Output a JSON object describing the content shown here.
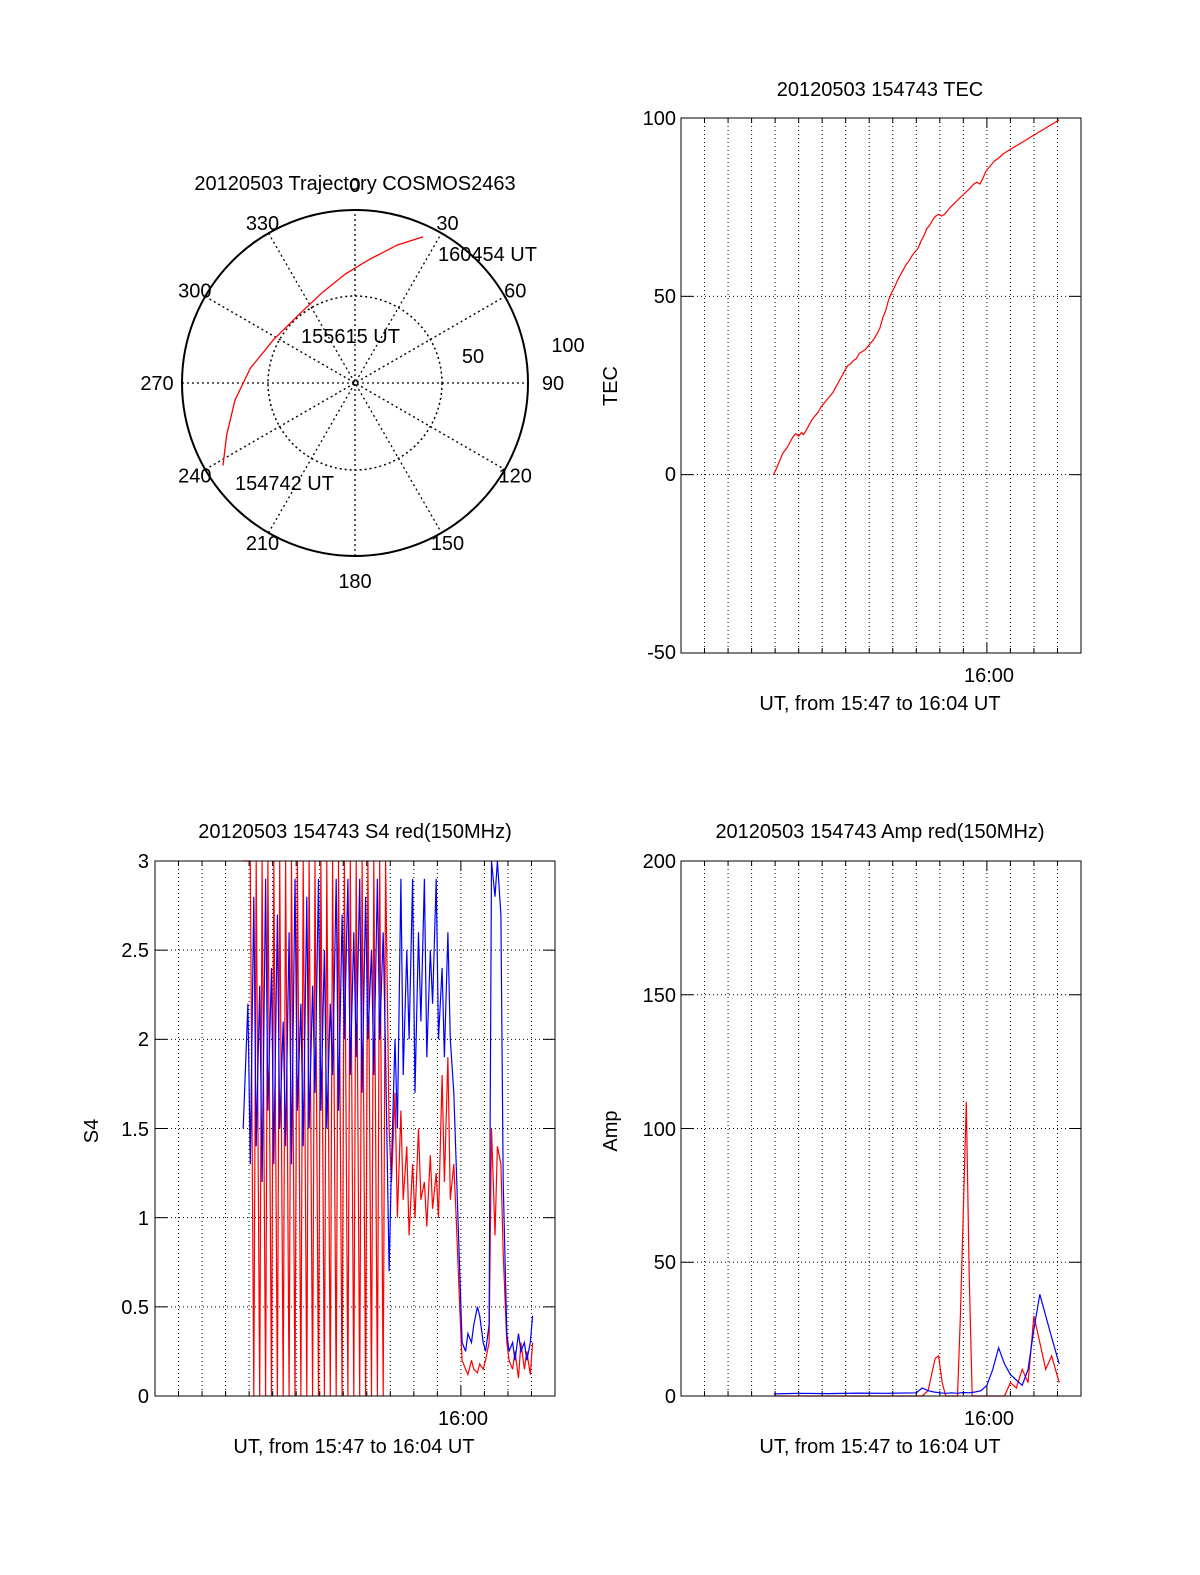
{
  "chart_data": [
    {
      "type": "polar",
      "title": "20120503 Trajectory COSMOS2463",
      "azimuth_labels": [
        "0",
        "30",
        "60",
        "90",
        "120",
        "150",
        "180",
        "210",
        "240",
        "270",
        "300",
        "330"
      ],
      "radial_labels": [
        "50",
        "100"
      ],
      "track_color": "#ff0000",
      "track": [
        {
          "az": 238,
          "zenith": 81
        },
        {
          "az": 248,
          "zenith": 72
        },
        {
          "az": 262,
          "zenith": 63
        },
        {
          "az": 278,
          "zenith": 55
        },
        {
          "az": 298,
          "zenith": 48
        },
        {
          "az": 320,
          "zenith": 46
        },
        {
          "az": 340,
          "zenith": 50
        },
        {
          "az": 355,
          "zenith": 57
        },
        {
          "az": 7,
          "zenith": 65
        },
        {
          "az": 17,
          "zenith": 75
        },
        {
          "az": 25,
          "zenith": 84
        }
      ],
      "annotations": [
        {
          "text": "160454 UT",
          "at": "end"
        },
        {
          "text": "155615 UT",
          "at": "middle"
        },
        {
          "text": "154742 UT",
          "at": "start"
        }
      ]
    },
    {
      "type": "line",
      "title": "20120503 154743 TEC",
      "ylabel": "TEC",
      "xlabel": "UT, from 15:47 to 16:04 UT",
      "xtick_label": "16:00",
      "ylim": [
        -50,
        100
      ],
      "yticks": [
        "-50",
        "0",
        "50",
        "100"
      ],
      "series": [
        {
          "color": "#ff0000",
          "x": [
            15.8,
            15.9,
            16.3,
            16.8,
            17.3,
            18.0,
            18.5,
            19.0,
            19.5,
            20.0,
            20.5,
            20.8,
            21.3,
            21.8,
            22.3,
            22.8,
            23.3,
            23.8,
            24.2,
            24.8,
            25.3,
            25.8,
            26.3,
            26.8,
            27.3,
            27.8,
            28.3,
            28.8,
            29.3,
            29.8,
            30.3,
            30.8,
            31.3,
            31.8,
            32.3,
            32.8,
            33.3,
            33.8,
            34.3,
            34.8,
            35.3,
            35.8,
            36.3,
            36.8,
            37.3,
            37.8,
            38.3,
            38.8,
            39.3,
            39.8,
            40.3,
            40.8,
            41.3,
            41.8,
            42.3,
            42.8,
            43.3,
            43.8,
            44.3,
            44.8,
            45.3,
            45.8,
            46.3,
            46.8,
            47.3,
            47.8,
            48.3,
            48.8,
            49.3,
            49.8,
            50.3,
            50.8,
            51.3,
            51.8,
            52.3,
            52.8,
            53.3,
            53.8,
            54.3,
            54.8,
            55.3,
            55.8,
            56.3,
            56.8,
            57.3,
            57.8,
            58.3,
            58.8,
            59.3,
            59.8,
            60.3,
            60.8,
            61.3,
            61.8,
            62.3,
            62.8,
            63.3,
            63.8,
            64.3
          ],
          "y": [
            0,
            0.6,
            2,
            4,
            6,
            7.5,
            9,
            10.5,
            11.5,
            10.8,
            11.8,
            11.2,
            12.5,
            14,
            15.5,
            16.5,
            17.5,
            19,
            19.8,
            21,
            22,
            23,
            24.5,
            26,
            27.5,
            29,
            30.5,
            31,
            32,
            32.5,
            34,
            34.5,
            35,
            36,
            37,
            38,
            39.5,
            41,
            44,
            46,
            49,
            51,
            52.5,
            54.5,
            56,
            57.5,
            59,
            60,
            61.5,
            62.5,
            63.5,
            65.5,
            67,
            69,
            70,
            71.5,
            72.5,
            73,
            72.5,
            73,
            74,
            75,
            75.8,
            76.6,
            77.4,
            78.2,
            79,
            79.8,
            80.6,
            81.5,
            82,
            81.5,
            83,
            85,
            86,
            87,
            88,
            88.5,
            89.2,
            90,
            90.5,
            91,
            91.5,
            92,
            92.5,
            93,
            93.5,
            94,
            94.5,
            95,
            95.5,
            96,
            96.5,
            97,
            97.5,
            98,
            98.5,
            99,
            99.5
          ]
        }
      ]
    },
    {
      "type": "line",
      "title": "20120503 154743 S4 red(150MHz)",
      "ylabel": "S4",
      "xlabel": "UT, from 15:47 to 16:04 UT",
      "xtick_label": "16:00",
      "ylim": [
        0,
        3
      ],
      "yticks": [
        "0",
        "0.5",
        "1",
        "1.5",
        "2",
        "2.5",
        "3"
      ],
      "series": [
        {
          "color": "#ff0000",
          "x": [
            15.0,
            15.8,
            16.2,
            16.8,
            17.2,
            17.8,
            18.2,
            18.8,
            19.2,
            19.8,
            20.2,
            20.8,
            21.2,
            21.8,
            22.2,
            22.8,
            23.2,
            23.8,
            24.2,
            24.8,
            25.2,
            25.8,
            26.2,
            26.8,
            27.2,
            27.8,
            28.2,
            28.8,
            29.2,
            29.8,
            30.2,
            30.8,
            31.2,
            31.8,
            32.2,
            32.8,
            33.2,
            33.8,
            34.2,
            34.8,
            35.2,
            35.8,
            36.2,
            36.8,
            37.2,
            37.8,
            38.2,
            38.8,
            39.2,
            39.8,
            40.2,
            40.8,
            41.2,
            41.8,
            42.2,
            42.8,
            43.2,
            43.8,
            44.2,
            44.8,
            45.2,
            45.8,
            46.2,
            46.8,
            47.2,
            47.8,
            48.2,
            48.8,
            49.2,
            49.8,
            50.2,
            50.8,
            51.2,
            51.8,
            52.2,
            52.8,
            53.2,
            53.8,
            54.2,
            54.8,
            55.2,
            55.8,
            56.2,
            56.8,
            57.2,
            57.8,
            58.2,
            58.8,
            59.2,
            59.8,
            60.2,
            60.8,
            61.2,
            61.8,
            62.2,
            62.8,
            63.2,
            63.8,
            64.2
          ],
          "y": [
            3.0,
            3.0,
            3.0,
            0,
            3.0,
            0,
            3.0,
            0,
            3.0,
            0,
            3.0,
            0,
            3.0,
            0,
            3.0,
            0,
            3.0,
            0,
            3.0,
            0,
            3.0,
            0,
            3.0,
            0,
            3.0,
            0,
            3.0,
            0,
            3.0,
            0,
            3.0,
            0,
            3.0,
            0,
            3.0,
            0,
            3.0,
            0,
            3.0,
            0,
            3.0,
            0,
            3.0,
            0,
            3.0,
            0,
            3.0,
            0,
            3.0,
            1.5,
            1.2,
            1.7,
            1.0,
            1.6,
            1.1,
            1.4,
            0.9,
            1.3,
            1.0,
            1.5,
            1.1,
            1.2,
            0.95,
            1.35,
            1.05,
            1.25,
            1.0,
            1.8,
            1.2,
            1.9,
            1.1,
            1.3,
            1.0,
            0.5,
            0.2,
            0.15,
            0.12,
            0.2,
            0.15,
            0.13,
            0.18,
            0.15,
            0.2,
            0.3,
            1.5,
            0.9,
            1.4,
            1.3,
            0.8,
            0.3,
            0.2,
            0.15,
            0.25,
            0.1,
            0.3,
            0.15,
            0.25,
            0.12,
            0.3
          ]
        },
        {
          "color": "#0000ff",
          "x": [
            15.0,
            15.8,
            16.2,
            16.8,
            17.2,
            17.8,
            18.2,
            18.8,
            19.2,
            19.8,
            20.2,
            20.8,
            21.2,
            21.8,
            22.2,
            22.8,
            23.2,
            23.8,
            24.2,
            24.8,
            25.2,
            25.8,
            26.2,
            26.8,
            27.2,
            27.8,
            28.2,
            28.8,
            29.2,
            29.8,
            30.2,
            30.8,
            31.2,
            31.8,
            32.2,
            32.8,
            33.2,
            33.8,
            34.2,
            34.8,
            35.2,
            35.8,
            36.2,
            36.8,
            37.2,
            37.8,
            38.2,
            38.8,
            39.2,
            39.8,
            40.2,
            40.8,
            41.2,
            41.8,
            42.2,
            42.8,
            43.2,
            43.8,
            44.2,
            44.8,
            45.2,
            45.8,
            46.2,
            46.8,
            47.2,
            47.8,
            48.2,
            48.8,
            49.2,
            49.8,
            50.2,
            50.8,
            51.2,
            51.8,
            52.2,
            52.8,
            53.2,
            53.8,
            54.2,
            54.8,
            55.2,
            55.8,
            56.2,
            56.8,
            57.2,
            57.8,
            58.2,
            58.8,
            59.2,
            59.8,
            60.2,
            60.8,
            61.2,
            61.8,
            62.2,
            62.8,
            63.2,
            63.8,
            64.2
          ],
          "y": [
            1.5,
            2.2,
            1.3,
            2.8,
            1.4,
            2.3,
            1.2,
            2.9,
            1.6,
            2.4,
            1.3,
            2.7,
            1.5,
            2.1,
            1.4,
            2.6,
            1.3,
            2.9,
            1.6,
            2.2,
            1.4,
            2.8,
            1.5,
            2.3,
            1.7,
            2.9,
            1.6,
            2.5,
            1.5,
            2.2,
            1.8,
            2.9,
            1.6,
            2.7,
            2.0,
            2.9,
            1.8,
            2.6,
            1.9,
            2.9,
            1.7,
            2.8,
            2.0,
            2.5,
            1.8,
            2.9,
            2.0,
            2.6,
            1.9,
            0.7,
            1.3,
            2.0,
            1.5,
            2.9,
            1.8,
            2.5,
            2.0,
            2.9,
            1.7,
            2.6,
            2.1,
            2.9,
            1.9,
            2.5,
            2.2,
            2.9,
            2.0,
            2.4,
            1.9,
            2.6,
            2.0,
            1.7,
            1.3,
            0.7,
            0.3,
            0.25,
            0.35,
            0.3,
            0.4,
            0.5,
            0.45,
            0.3,
            0.25,
            0.4,
            3.0,
            2.8,
            3.0,
            2.7,
            1.2,
            0.35,
            0.25,
            0.3,
            0.2,
            0.35,
            0.25,
            0.3,
            0.2,
            0.3,
            0.45
          ]
        }
      ]
    },
    {
      "type": "line",
      "title": "20120503 154743 Amp red(150MHz)",
      "ylabel": "Amp",
      "xlabel": "UT, from 15:47 to 16:04 UT",
      "xtick_label": "16:00",
      "ylim": [
        0,
        200
      ],
      "yticks": [
        "0",
        "50",
        "100",
        "150",
        "200"
      ],
      "series": [
        {
          "color": "#ff0000",
          "x": [
            15.8,
            30.0,
            41.0,
            42.0,
            42.6,
            43.2,
            43.8,
            44.4,
            45.0,
            46.0,
            47.0,
            47.5,
            48.0,
            48.5,
            49.0,
            49.5,
            50.0,
            51.0,
            52.0,
            55.0,
            56.0,
            57.0,
            58.0,
            59.0,
            60.0,
            61.0,
            62.0,
            63.0,
            64.3
          ],
          "y": [
            0,
            0,
            0,
            2,
            8,
            14,
            15,
            5,
            0,
            0,
            0,
            30,
            70,
            110,
            45,
            0,
            0,
            0,
            0,
            0,
            5,
            3,
            10,
            5,
            30,
            20,
            10,
            15,
            5
          ]
        },
        {
          "color": "#0000ff",
          "x": [
            15.8,
            20.0,
            25.0,
            30.0,
            35.0,
            40.0,
            41.0,
            42.0,
            43.0,
            44.0,
            45.0,
            46.0,
            47.0,
            48.0,
            49.0,
            50.0,
            51.0,
            52.0,
            53.0,
            54.0,
            55.0,
            56.0,
            57.0,
            58.0,
            59.0,
            60.0,
            61.0,
            62.0,
            63.0,
            64.3
          ],
          "y": [
            0.8,
            1.0,
            0.9,
            1.1,
            1.0,
            1.2,
            3,
            2,
            1.5,
            1.2,
            1.0,
            1.2,
            1.0,
            1.3,
            1.2,
            1.5,
            2,
            4,
            10,
            18,
            12,
            8,
            6,
            4,
            10,
            25,
            38,
            30,
            22,
            12
          ]
        }
      ]
    }
  ]
}
